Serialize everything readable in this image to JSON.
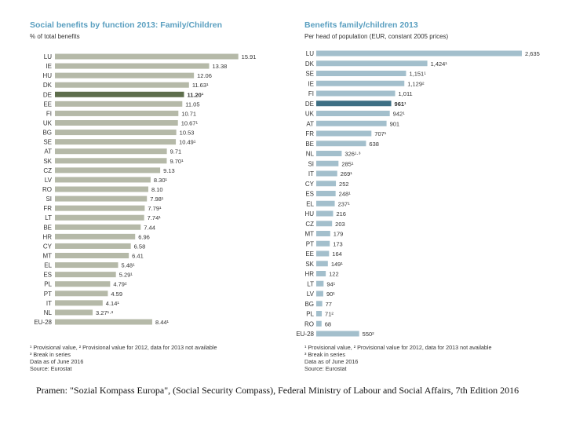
{
  "chart_data": [
    {
      "type": "bar",
      "orientation": "horizontal",
      "title": "Social benefits by function 2013: Family/Children",
      "subtitle": "% of total benefits",
      "unit": "%",
      "xlim": [
        0,
        16
      ],
      "grid": false,
      "categories": [
        "LU",
        "IE",
        "HU",
        "DK",
        "DE",
        "EE",
        "FI",
        "UK",
        "BG",
        "SE",
        "AT",
        "SK",
        "CZ",
        "LV",
        "RO",
        "SI",
        "FR",
        "LT",
        "BE",
        "HR",
        "CY",
        "MT",
        "EL",
        "ES",
        "PL",
        "PT",
        "IT",
        "NL",
        "EU-28"
      ],
      "values": [
        15.91,
        13.38,
        12.06,
        11.63,
        11.2,
        11.05,
        10.71,
        10.67,
        10.53,
        10.49,
        9.71,
        9.7,
        9.13,
        8.3,
        8.1,
        7.98,
        7.79,
        7.74,
        7.44,
        6.96,
        6.58,
        6.41,
        5.48,
        5.29,
        4.79,
        4.59,
        4.14,
        3.27,
        8.44
      ],
      "value_labels": [
        "15.91",
        "13.38",
        "12.06",
        "11.63¹",
        "11.20¹",
        "11.05",
        "10.71",
        "10.67¹",
        "10.53",
        "10.49¹",
        "9.71",
        "9.70¹",
        "9.13",
        "8.30¹",
        "8.10",
        "7.98¹",
        "7.79¹",
        "7.74¹",
        "7.44",
        "6.96",
        "6.58",
        "6.41",
        "5.48¹",
        "5.29¹",
        "4.79²",
        "4.59",
        "4.14¹",
        "3.27¹·³",
        "8.44¹"
      ],
      "highlight": "DE",
      "colors": {
        "bar": "#b5b9a8",
        "highlight": "#5e6e4c"
      },
      "notes": [
        "¹ Provisional value, ² Provisional value for 2012, data for 2013 not available",
        "³ Break in series",
        "Data as of June 2016",
        "Source: Eurostat"
      ]
    },
    {
      "type": "bar",
      "orientation": "horizontal",
      "title": "Benefits family/children 2013",
      "subtitle": "Per head of population (EUR, constant 2005 prices)",
      "unit": "EUR",
      "xlim": [
        0,
        2635
      ],
      "grid": false,
      "categories": [
        "LU",
        "DK",
        "SE",
        "IE",
        "FI",
        "DE",
        "UK",
        "AT",
        "FR",
        "BE",
        "NL",
        "SI",
        "IT",
        "CY",
        "ES",
        "EL",
        "HU",
        "CZ",
        "MT",
        "PT",
        "EE",
        "SK",
        "HR",
        "LT",
        "LV",
        "BG",
        "PL",
        "RO",
        "EU-28"
      ],
      "values": [
        2635,
        1424,
        1151,
        1129,
        1011,
        961,
        942,
        901,
        707,
        638,
        326,
        285,
        269,
        252,
        248,
        237,
        216,
        203,
        179,
        173,
        164,
        149,
        122,
        94,
        90,
        77,
        71,
        68,
        550
      ],
      "value_labels": [
        "2,635",
        "1,424¹",
        "1,151¹",
        "1,129²",
        "1,011",
        "961¹",
        "942¹",
        "901",
        "707¹",
        "638",
        "326¹·³",
        "285¹",
        "269¹",
        "252",
        "248¹",
        "237¹",
        "216",
        "203",
        "179",
        "173",
        "164",
        "149¹",
        "122",
        "94¹",
        "90¹",
        "77",
        "71²",
        "68",
        "550²"
      ],
      "highlight": "DE",
      "colors": {
        "bar": "#a3bfcc",
        "highlight": "#3d6f84"
      },
      "notes": [
        "¹ Provisional value, ² Provisional value for 2012, data for 2013 not available",
        "³ Break in series",
        "Data as of June 2016",
        "Source: Eurostat"
      ]
    }
  ],
  "caption": "Pramen: \"Sozial Kompass Europa\", (Social Security Compass), Federal Ministry of Labour and Social Affairs, 7th Edition 2016"
}
